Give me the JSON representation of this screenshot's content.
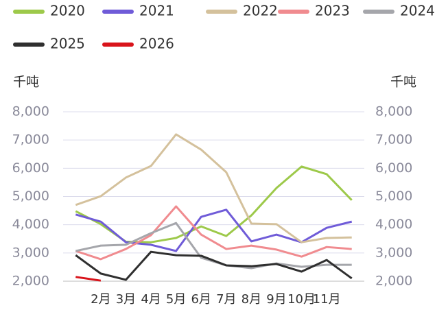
{
  "chart_data": {
    "type": "line",
    "y_label": "千吨",
    "y2_label": "千吨",
    "categories": [
      null,
      "2月",
      "3月",
      "4月",
      "5月",
      "6月",
      "7月",
      "8月",
      "9月",
      "10月",
      "11月",
      null
    ],
    "series": [
      {
        "name": "2020",
        "color": "#9dc94a",
        "values": [
          4480,
          4020,
          3400,
          3380,
          3530,
          3940,
          3600,
          4330,
          5300,
          6060,
          5790,
          4870
        ]
      },
      {
        "name": "2021",
        "color": "#6f5bd8",
        "values": [
          4360,
          4110,
          3380,
          3290,
          3070,
          4280,
          4530,
          3410,
          3650,
          3380,
          3890,
          4110
        ]
      },
      {
        "name": "2022",
        "color": "#d4c19c",
        "values": [
          4700,
          5010,
          5670,
          6080,
          7200,
          6660,
          5860,
          4040,
          4020,
          3380,
          3530,
          3550
        ]
      },
      {
        "name": "2023",
        "color": "#f08b8f",
        "values": [
          3070,
          2780,
          3140,
          3630,
          4650,
          3650,
          3140,
          3260,
          3120,
          2870,
          3210,
          3140
        ]
      },
      {
        "name": "2024",
        "color": "#a5a6ab",
        "values": [
          3070,
          3260,
          3290,
          3700,
          4060,
          2830,
          2560,
          2460,
          2630,
          2510,
          2580,
          2580
        ]
      },
      {
        "name": "2025",
        "color": "#2f2f2f",
        "values": [
          2920,
          2270,
          2050,
          3040,
          2920,
          2900,
          2560,
          2530,
          2610,
          2340,
          2750,
          2100
        ]
      },
      {
        "name": "2026",
        "color": "#d9141b",
        "values": [
          2150,
          2020,
          null,
          null,
          null,
          null,
          null,
          null,
          null,
          null,
          null,
          null
        ]
      }
    ],
    "ylim": [
      2000,
      8000
    ],
    "yticks": [
      {
        "value": 2000,
        "label": "2,000"
      },
      {
        "value": 3000,
        "label": "3,000"
      },
      {
        "value": 4000,
        "label": "4,000"
      },
      {
        "value": 5000,
        "label": "5,000"
      },
      {
        "value": 6000,
        "label": "6,000"
      },
      {
        "value": 7000,
        "label": "7,000"
      },
      {
        "value": 8000,
        "label": "8,000"
      }
    ],
    "y2lim": [
      2000,
      8000
    ],
    "y2ticks": [
      {
        "value": 2000,
        "label": "2,000"
      },
      {
        "value": 3000,
        "label": "3,000"
      },
      {
        "value": 4000,
        "label": "4,000"
      },
      {
        "value": 5000,
        "label": "5,000"
      },
      {
        "value": 6000,
        "label": "6,000"
      },
      {
        "value": 7000,
        "label": "7,000"
      },
      {
        "value": 8000,
        "label": "8,000"
      }
    ],
    "grid": true,
    "legend": "top"
  }
}
